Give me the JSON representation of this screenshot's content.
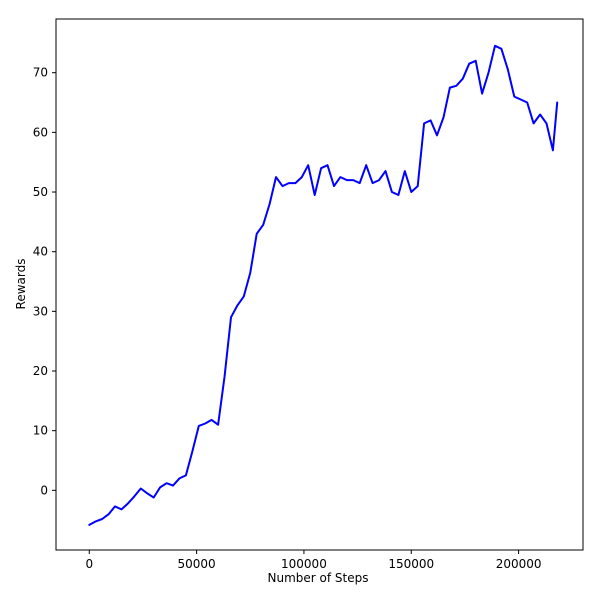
{
  "chart_data": {
    "type": "line",
    "title": "",
    "xlabel": "Number of Steps",
    "ylabel": "Rewards",
    "xlim": [
      -15500,
      230000
    ],
    "ylim": [
      -10,
      79
    ],
    "xticks": [
      0,
      50000,
      100000,
      150000,
      200000
    ],
    "yticks": [
      0,
      10,
      20,
      30,
      40,
      50,
      60,
      70
    ],
    "xtick_labels": [
      "0",
      "50000",
      "100000",
      "150000",
      "200000"
    ],
    "ytick_labels": [
      "0",
      "10",
      "20",
      "30",
      "40",
      "50",
      "60",
      "70"
    ],
    "grid": false,
    "legend": "none",
    "line_color": "#0000ff",
    "series": [
      {
        "x": [
          0,
          3000,
          6000,
          9000,
          12000,
          15000,
          18000,
          21000,
          24000,
          27000,
          30000,
          33000,
          36000,
          39000,
          42000,
          45000,
          48000,
          51000,
          54000,
          57000,
          60000,
          63000,
          66000,
          69000,
          72000,
          75000,
          78000,
          81000,
          84000,
          87000,
          90000,
          93000,
          96000,
          99000,
          102000,
          105000,
          108000,
          111000,
          114000,
          117000,
          120000,
          123000,
          126000,
          129000,
          132000,
          135000,
          138000,
          141000,
          144000,
          147000,
          150000,
          153000,
          156000,
          159000,
          162000,
          165000,
          168000,
          171000,
          174000,
          177000,
          180000,
          183000,
          186000,
          189000,
          192000,
          195000,
          198000,
          201000,
          204000,
          207000,
          210000,
          213000,
          216000,
          218000
        ],
        "values": [
          -5.8,
          -5.2,
          -4.8,
          -4,
          -2.7,
          -3.2,
          -2.2,
          -1,
          0.3,
          -0.5,
          -1.2,
          0.5,
          1.2,
          0.8,
          2,
          2.5,
          6.5,
          10.8,
          11.2,
          11.8,
          11,
          19,
          29,
          31,
          32.5,
          36.5,
          43,
          44.5,
          48,
          52.5,
          51,
          51.5,
          51.5,
          52.5,
          54.5,
          49.5,
          54,
          54.5,
          51,
          52.5,
          52,
          52,
          51.5,
          54.5,
          51.5,
          52,
          53.5,
          50,
          49.5,
          53.5,
          50,
          51,
          61.5,
          62,
          59.5,
          62.5,
          67.5,
          67.8,
          69,
          71.5,
          72,
          66.5,
          70,
          74.5,
          74,
          70.5,
          66,
          65.5,
          65,
          61.5,
          63,
          61.5,
          57,
          65
        ]
      }
    ]
  }
}
